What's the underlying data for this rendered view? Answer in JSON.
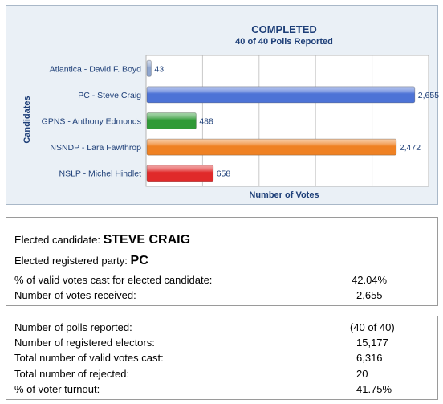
{
  "chart_data": {
    "type": "bar",
    "orientation": "horizontal",
    "title": "COMPLETED",
    "subtitle": "40 of 40 Polls Reported",
    "xlabel": "Number of Votes",
    "ylabel": "Candidates",
    "xlim": [
      0,
      2800
    ],
    "grid": true,
    "categories": [
      "Atlantica - David F. Boyd",
      "PC - Steve Craig",
      "GPNS - Anthony Edmonds",
      "NSNDP - Lara Fawthrop",
      "NSLP - Michel Hindlet"
    ],
    "values": [
      43,
      2655,
      488,
      2472,
      658
    ],
    "value_labels": [
      "43",
      "2,655",
      "488",
      "2,472",
      "658"
    ],
    "colors": [
      "#8fa6cf",
      "#4d73d6",
      "#2f9a36",
      "#ef8123",
      "#e02a2a"
    ]
  },
  "result": {
    "elected_candidate_label": "Elected candidate:",
    "elected_candidate_value": "STEVE CRAIG",
    "elected_party_label": "Elected registered party:",
    "elected_party_value": "PC",
    "pct_valid_label": "% of valid votes cast for elected candidate:",
    "pct_valid_value": "42.04%",
    "votes_received_label": "Number of votes received:",
    "votes_received_value": "2,655"
  },
  "stats": {
    "polls_reported_label": "Number of polls reported:",
    "polls_reported_value": "(40 of 40)",
    "registered_electors_label": "Number of registered electors:",
    "registered_electors_value": "15,177",
    "valid_votes_label": "Total number of valid votes cast:",
    "valid_votes_value": "6,316",
    "rejected_label": "Total number of rejected:",
    "rejected_value": "20",
    "turnout_label": "% of voter turnout:",
    "turnout_value": "41.75%"
  }
}
